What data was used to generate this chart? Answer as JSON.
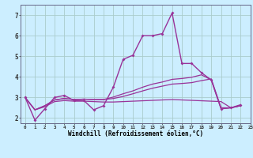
{
  "xlabel": "Windchill (Refroidissement éolien,°C)",
  "xlim": [
    -0.5,
    23
  ],
  "ylim": [
    1.75,
    7.5
  ],
  "xtick_labels": [
    "0",
    "1",
    "2",
    "3",
    "4",
    "5",
    "6",
    "7",
    "8",
    "9",
    "10",
    "11",
    "12",
    "13",
    "14",
    "15",
    "16",
    "17",
    "18",
    "19",
    "20",
    "21",
    "22",
    "23"
  ],
  "ytick_vals": [
    2,
    3,
    4,
    5,
    6,
    7
  ],
  "bg_color": "#cceeff",
  "grid_color": "#aacccc",
  "lc": "#993399",
  "series": [
    {
      "x": [
        0,
        1,
        2,
        3,
        4,
        5,
        6,
        7,
        8,
        9,
        10,
        11,
        12,
        13,
        14,
        15,
        16,
        17,
        18,
        19,
        20,
        21,
        22
      ],
      "y": [
        3.0,
        1.9,
        2.45,
        3.0,
        3.1,
        2.85,
        2.85,
        2.4,
        2.6,
        3.5,
        4.85,
        5.05,
        6.0,
        6.0,
        6.1,
        7.1,
        4.65,
        4.65,
        4.2,
        3.85,
        2.45,
        2.5,
        2.65
      ],
      "marker": true,
      "lw": 1.0
    },
    {
      "x": [
        0,
        1,
        2,
        3,
        4,
        5,
        6,
        7,
        8,
        9,
        10,
        11,
        12,
        13,
        14,
        15,
        16,
        17,
        18,
        19,
        20,
        21,
        22
      ],
      "y": [
        3.0,
        2.4,
        2.55,
        2.8,
        2.85,
        2.82,
        2.82,
        2.8,
        2.78,
        2.78,
        2.8,
        2.82,
        2.84,
        2.86,
        2.88,
        2.9,
        2.88,
        2.86,
        2.84,
        2.82,
        2.8,
        2.5,
        2.6
      ],
      "marker": false,
      "lw": 0.9
    },
    {
      "x": [
        0,
        1,
        2,
        3,
        4,
        5,
        6,
        7,
        8,
        9,
        10,
        11,
        12,
        13,
        14,
        15,
        16,
        17,
        18,
        19,
        20,
        21,
        22
      ],
      "y": [
        3.0,
        2.4,
        2.6,
        2.88,
        2.95,
        2.9,
        2.92,
        2.9,
        2.9,
        2.95,
        3.05,
        3.18,
        3.32,
        3.45,
        3.55,
        3.65,
        3.68,
        3.72,
        3.82,
        3.9,
        2.5,
        2.5,
        2.6
      ],
      "marker": false,
      "lw": 0.9
    },
    {
      "x": [
        0,
        1,
        2,
        3,
        4,
        5,
        6,
        7,
        8,
        9,
        10,
        11,
        12,
        13,
        14,
        15,
        16,
        17,
        18,
        19,
        20,
        21,
        22
      ],
      "y": [
        3.0,
        2.4,
        2.6,
        2.88,
        2.95,
        2.9,
        2.92,
        2.9,
        2.9,
        3.02,
        3.18,
        3.32,
        3.5,
        3.65,
        3.75,
        3.88,
        3.92,
        3.98,
        4.1,
        3.85,
        2.45,
        2.5,
        2.6
      ],
      "marker": false,
      "lw": 0.9
    }
  ]
}
